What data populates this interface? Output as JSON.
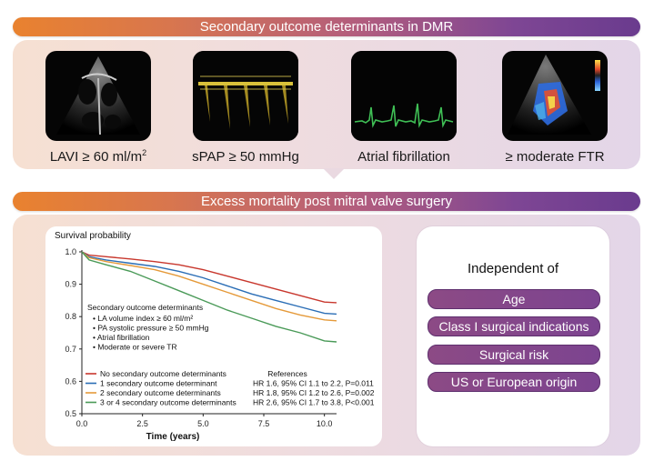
{
  "header": {
    "title": "Secondary outcome determinants in DMR"
  },
  "determinants": [
    {
      "label_main": "LAVI ≥ 60 ml/m",
      "label_sup": "2",
      "icon": "echocardiogram-image"
    },
    {
      "label_main": "sPAP ≥ 50 mmHg",
      "label_sup": "",
      "icon": "doppler-waveform-image"
    },
    {
      "label_main": "Atrial fibrillation",
      "label_sup": "",
      "icon": "ecg-trace-image"
    },
    {
      "label_main": "≥ moderate FTR",
      "label_sup": "",
      "icon": "color-doppler-image"
    }
  ],
  "section2": {
    "title": "Excess mortality post mitral valve surgery"
  },
  "chart_data": {
    "type": "line",
    "title": "Survival probability",
    "xlabel": "Time (years)",
    "ylabel": "Survival probability",
    "xlim": [
      0,
      10.5
    ],
    "ylim": [
      0.5,
      1.0
    ],
    "x_ticks": [
      "0.0",
      "2.5",
      "5.0",
      "7.5",
      "10.0"
    ],
    "y_ticks": [
      "1.0",
      "0.9",
      "0.8",
      "0.7",
      "0.6",
      "0.5"
    ],
    "series": [
      {
        "name": "No secondary outcome determinants",
        "color": "#c8372d",
        "points": [
          [
            0,
            1.0
          ],
          [
            0.3,
            0.99
          ],
          [
            1,
            0.985
          ],
          [
            2,
            0.978
          ],
          [
            3,
            0.97
          ],
          [
            4,
            0.96
          ],
          [
            5,
            0.945
          ],
          [
            6,
            0.925
          ],
          [
            7,
            0.905
          ],
          [
            8,
            0.885
          ],
          [
            9,
            0.865
          ],
          [
            10,
            0.845
          ],
          [
            10.5,
            0.843
          ]
        ]
      },
      {
        "name": "1 secondary outcome determinant",
        "color": "#2a6db5",
        "points": [
          [
            0,
            1.0
          ],
          [
            0.3,
            0.985
          ],
          [
            1,
            0.975
          ],
          [
            2,
            0.965
          ],
          [
            3,
            0.955
          ],
          [
            4,
            0.94
          ],
          [
            5,
            0.92
          ],
          [
            6,
            0.895
          ],
          [
            7,
            0.87
          ],
          [
            8,
            0.85
          ],
          [
            9,
            0.83
          ],
          [
            10,
            0.81
          ],
          [
            10.5,
            0.808
          ]
        ]
      },
      {
        "name": "2 secondary outcome determinants",
        "color": "#e59a3a",
        "points": [
          [
            0,
            1.0
          ],
          [
            0.3,
            0.982
          ],
          [
            1,
            0.97
          ],
          [
            2,
            0.958
          ],
          [
            3,
            0.945
          ],
          [
            4,
            0.925
          ],
          [
            5,
            0.9
          ],
          [
            6,
            0.875
          ],
          [
            7,
            0.85
          ],
          [
            8,
            0.825
          ],
          [
            9,
            0.805
          ],
          [
            10,
            0.79
          ],
          [
            10.5,
            0.787
          ]
        ]
      },
      {
        "name": "3 or 4 secondary outcome determinants",
        "color": "#4a9a58",
        "points": [
          [
            0,
            1.0
          ],
          [
            0.3,
            0.975
          ],
          [
            1,
            0.96
          ],
          [
            2,
            0.94
          ],
          [
            3,
            0.91
          ],
          [
            4,
            0.88
          ],
          [
            5,
            0.85
          ],
          [
            6,
            0.82
          ],
          [
            7,
            0.795
          ],
          [
            8,
            0.77
          ],
          [
            9,
            0.75
          ],
          [
            10,
            0.725
          ],
          [
            10.5,
            0.722
          ]
        ]
      }
    ],
    "annotation": {
      "title": "Secondary outcome determinants",
      "items": [
        "LA volume index ≥ 60 ml/m²",
        "PA systolic pressure ≥ 50 mmHg",
        "Atrial fibrillation",
        "Moderate or severe TR"
      ]
    },
    "references": {
      "title": "References",
      "rows": [
        "",
        "HR 1.6, 95% CI 1.1 to 2.2, P=0.011",
        "HR 1.8, 95% CI 1.2 to 2.6, P=0.002",
        "HR 2.6, 95% CI 1.7 to 3.8, P<0.001"
      ]
    },
    "grid": false,
    "legend_position": "bottom-left"
  },
  "independent": {
    "title": "Independent of",
    "items": [
      "Age",
      "Class I surgical indications",
      "Surgical risk",
      "US or European origin"
    ]
  },
  "colors": {
    "accent_orange": "#e9822f",
    "accent_purple": "#6a3b8e",
    "pill": "#7c4490"
  }
}
